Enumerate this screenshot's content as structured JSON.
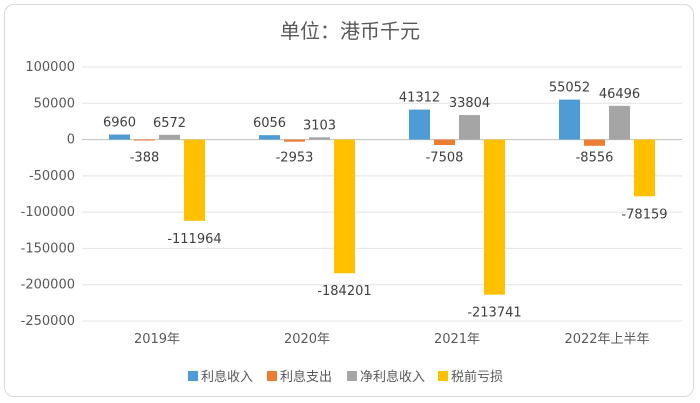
{
  "chart_data": {
    "type": "bar",
    "title": "单位：港币千元",
    "categories": [
      "2019年",
      "2020年",
      "2021年",
      "2022年上半年"
    ],
    "series": [
      {
        "name": "利息收入",
        "color": "#4e9bd6",
        "values": [
          6960,
          6056,
          41312,
          55052
        ]
      },
      {
        "name": "利息支出",
        "color": "#ed7d31",
        "values": [
          -388,
          -2953,
          -7508,
          -8556
        ]
      },
      {
        "name": "净利息收入",
        "color": "#a5a5a5",
        "values": [
          6572,
          3103,
          33804,
          46496
        ]
      },
      {
        "name": "税前亏损",
        "color": "#ffc000",
        "values": [
          -111964,
          -184201,
          -213741,
          -78159
        ]
      }
    ],
    "yticks": [
      100000,
      50000,
      0,
      -50000,
      -100000,
      -150000,
      -200000,
      -250000
    ],
    "ylim": [
      -250000,
      100000
    ],
    "grid": true,
    "legend": "bottom"
  }
}
